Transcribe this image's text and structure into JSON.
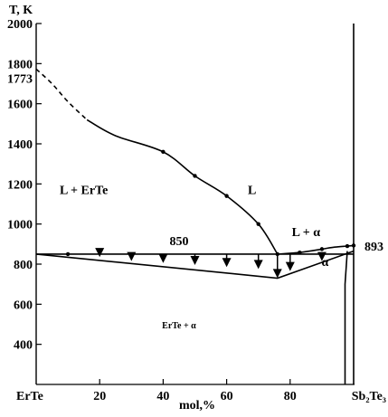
{
  "chart_data": {
    "type": "line",
    "title": "",
    "ylabel": "T, K",
    "xlabel": "mol,%",
    "xlim": [
      0,
      100
    ],
    "ylim": [
      200,
      2000
    ],
    "x_ticks": [
      {
        "value": 0,
        "label": "ErTe"
      },
      {
        "value": 20,
        "label": "20"
      },
      {
        "value": 40,
        "label": "40"
      },
      {
        "value": 60,
        "label": "60"
      },
      {
        "value": 80,
        "label": "80"
      },
      {
        "value": 100,
        "label": "Sb₂Te₃"
      }
    ],
    "y_ticks": [
      {
        "value": 400,
        "label": "400"
      },
      {
        "value": 600,
        "label": "600"
      },
      {
        "value": 800,
        "label": "800"
      },
      {
        "value": 1000,
        "label": "1000"
      },
      {
        "value": 1200,
        "label": "1200"
      },
      {
        "value": 1400,
        "label": "1400"
      },
      {
        "value": 1600,
        "label": "1600"
      },
      {
        "value": 1800,
        "label": "1800"
      },
      {
        "value": 2000,
        "label": "2000"
      }
    ],
    "special_y_labels": [
      {
        "value": 1773,
        "label": "1773"
      }
    ],
    "point_labels": [
      {
        "x": 45,
        "y": 895,
        "label": "850"
      },
      {
        "x": 100,
        "y": 890,
        "label": "893"
      }
    ],
    "liquidus_dashed": {
      "x": [
        0,
        5,
        10,
        16
      ],
      "y": [
        1773,
        1700,
        1610,
        1520
      ]
    },
    "liquidus": {
      "x": [
        16,
        25,
        40,
        50,
        60,
        70,
        76
      ],
      "y": [
        1520,
        1440,
        1360,
        1240,
        1140,
        1000,
        850
      ]
    },
    "liquidus_points": {
      "x": [
        40,
        50,
        60,
        70
      ],
      "y": [
        1360,
        1240,
        1140,
        1000
      ]
    },
    "eutectic_line": {
      "x": [
        0,
        100
      ],
      "y": [
        850,
        850
      ]
    },
    "right_liquidus": {
      "x": [
        76,
        83,
        90,
        94,
        98,
        100
      ],
      "y": [
        850,
        858,
        875,
        885,
        890,
        893
      ]
    },
    "right_liquidus_points": {
      "x": [
        83,
        90,
        98
      ],
      "y": [
        858,
        875,
        890
      ]
    },
    "lower_boundary": {
      "x": [
        0,
        76,
        100
      ],
      "y": [
        850,
        730,
        865
      ]
    },
    "alpha_solvus": {
      "x": [
        97.3,
        97.3,
        98
      ],
      "y": [
        200,
        700,
        865
      ]
    },
    "phase_boundary_right": {
      "x": [
        100,
        100
      ],
      "y": [
        200,
        2000
      ]
    },
    "thermal_arrows": {
      "x": [
        20,
        30,
        40,
        50,
        60,
        70,
        76,
        80,
        90
      ],
      "y_top": [
        850,
        850,
        850,
        850,
        850,
        850,
        850,
        850,
        850
      ],
      "y_bottom": [
        840,
        820,
        810,
        800,
        790,
        780,
        735,
        770,
        820
      ]
    },
    "region_labels": [
      {
        "x": 15,
        "y": 1150,
        "label": "L + ErTe"
      },
      {
        "x": 68,
        "y": 1150,
        "label": "L"
      },
      {
        "x": 85,
        "y": 940,
        "label": "L + α"
      },
      {
        "x": 91,
        "y": 790,
        "label": "α"
      },
      {
        "x": 45,
        "y": 480,
        "label": "ErTe + α"
      }
    ]
  }
}
